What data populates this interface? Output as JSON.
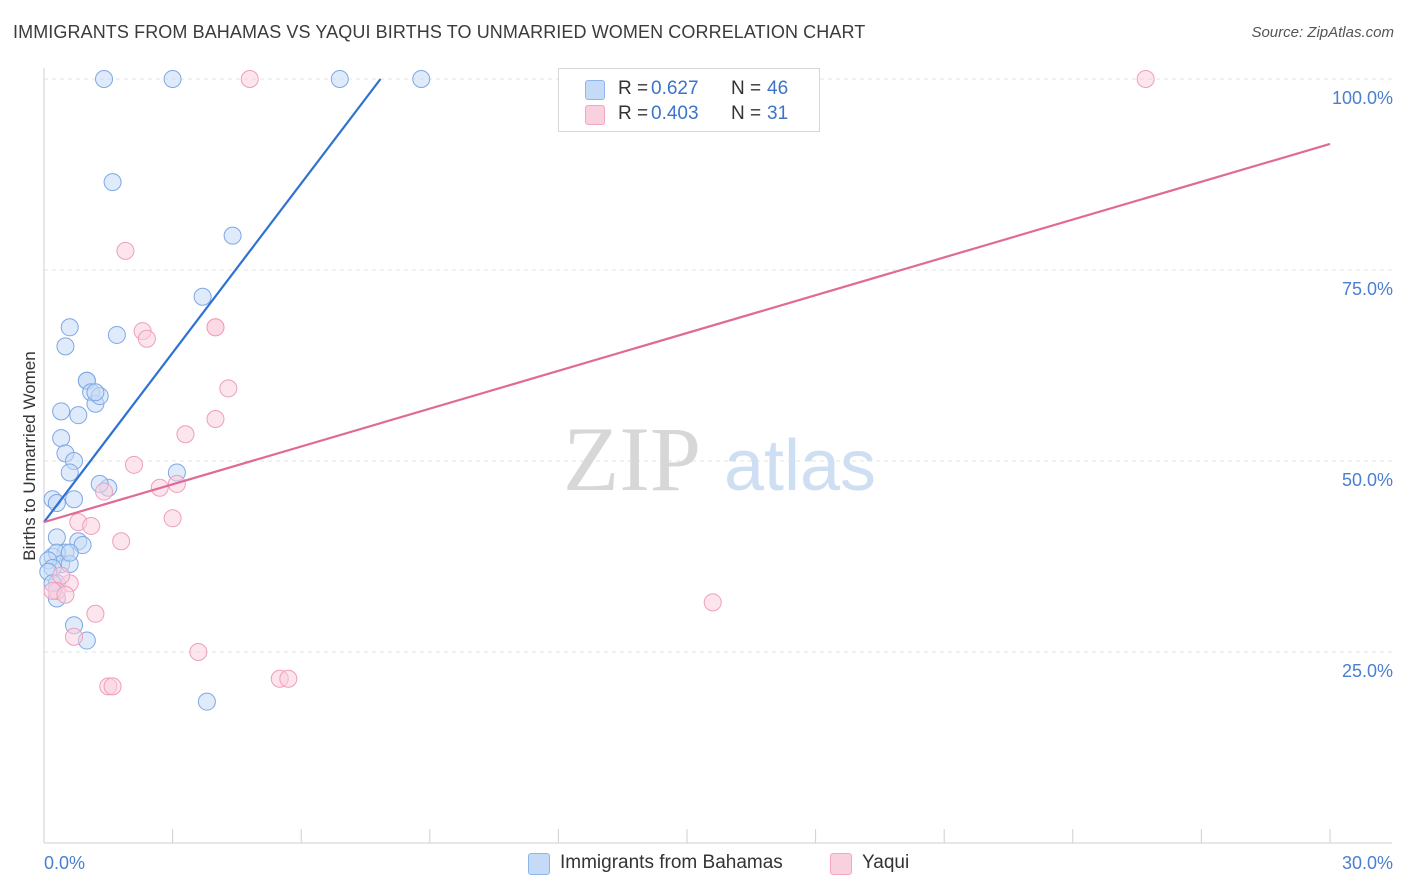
{
  "title": "IMMIGRANTS FROM BAHAMAS VS YAQUI BIRTHS TO UNMARRIED WOMEN CORRELATION CHART",
  "source": "Source: ZipAtlas.com",
  "watermark": {
    "zip": "ZIP",
    "atlas": "atlas"
  },
  "legend": {
    "r_label": "R =",
    "n_label": "N =",
    "series": [
      {
        "name": "Immigrants from Bahamas",
        "r": "0.627",
        "n": "46",
        "color": "#8fb6ec",
        "fill": "#c5daf7",
        "line": "#2e72d2"
      },
      {
        "name": "Yaqui",
        "r": "0.403",
        "n": "31",
        "color": "#f2a6c0",
        "fill": "#f9d0de",
        "line": "#e06a96"
      }
    ]
  },
  "chart_data": {
    "type": "scatter",
    "title": "IMMIGRANTS FROM BAHAMAS VS YAQUI BIRTHS TO UNMARRIED WOMEN CORRELATION CHART",
    "xlabel": "",
    "ylabel": "Births to Unmarried Women",
    "xlim": [
      0,
      30
    ],
    "ylim": [
      0,
      100
    ],
    "x_tick_labels": [
      "0.0%",
      "30.0%"
    ],
    "y_ticks": [
      25,
      50,
      75,
      100
    ],
    "y_tick_labels": [
      "25.0%",
      "50.0%",
      "75.0%",
      "100.0%"
    ],
    "grid": true,
    "series": [
      {
        "name": "Immigrants from Bahamas",
        "x": [
          1.4,
          3.0,
          6.9,
          8.8,
          1.6,
          4.4,
          1.7,
          3.7,
          0.5,
          0.6,
          0.4,
          0.8,
          1.0,
          1.0,
          1.1,
          1.2,
          1.3,
          1.2,
          0.4,
          0.5,
          0.7,
          0.6,
          0.2,
          0.3,
          0.3,
          0.5,
          0.2,
          0.3,
          0.4,
          0.1,
          0.2,
          0.1,
          0.3,
          0.2,
          0.6,
          0.8,
          0.9,
          1.5,
          0.7,
          1.0,
          3.1,
          0.7,
          0.3,
          0.6,
          1.3,
          3.8
        ],
        "y": [
          100,
          100,
          100,
          100,
          86.5,
          79.5,
          66.5,
          71.5,
          65,
          67.5,
          56.5,
          56,
          60.5,
          60.5,
          59,
          57.5,
          58.5,
          59,
          53,
          51,
          50,
          48.5,
          45,
          44.5,
          40,
          38,
          37.5,
          38,
          36.5,
          37,
          36,
          35.5,
          34,
          34,
          36.5,
          39.5,
          39,
          46.5,
          28.5,
          26.5,
          48.5,
          45,
          32,
          38,
          47,
          18.5
        ]
      },
      {
        "name": "Yaqui",
        "x": [
          4.8,
          25.7,
          1.9,
          2.3,
          2.4,
          3.3,
          4.0,
          4.0,
          4.3,
          4.0,
          2.1,
          2.7,
          3.0,
          1.4,
          0.8,
          1.1,
          0.6,
          1.8,
          0.4,
          0.3,
          0.2,
          0.5,
          1.2,
          15.6,
          0.7,
          1.5,
          3.6,
          5.5,
          5.7,
          3.1,
          1.6
        ],
        "y": [
          100,
          100,
          77.5,
          67,
          66,
          53.5,
          67.5,
          67.5,
          59.5,
          55.5,
          49.5,
          46.5,
          42.5,
          46,
          42,
          41.5,
          34,
          39.5,
          35,
          33,
          33,
          32.5,
          30,
          31.5,
          27,
          20.5,
          25,
          21.5,
          21.5,
          47,
          20.5
        ]
      }
    ],
    "trend_lines": [
      {
        "name": "Immigrants from Bahamas",
        "x": [
          0,
          7.85
        ],
        "y": [
          42,
          100
        ]
      },
      {
        "name": "Yaqui",
        "x": [
          0,
          30
        ],
        "y": [
          42,
          91.5
        ]
      }
    ]
  }
}
